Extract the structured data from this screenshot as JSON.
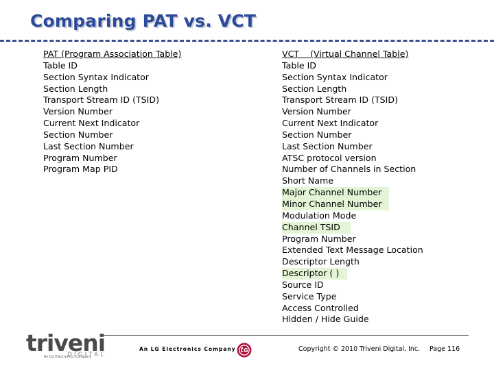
{
  "slide": {
    "title": "Comparing PAT vs. VCT"
  },
  "pat": {
    "header": "PAT (Program Association Table)",
    "items": [
      "Table ID",
      "Section Syntax Indicator",
      "Section Length",
      "Transport Stream ID (TSID)",
      "Version Number",
      "Current Next Indicator",
      "Section Number",
      "Last Section Number",
      "Program Number",
      "Program Map  PID"
    ]
  },
  "vct": {
    "header": "VCT    (Virtual Channel Table)",
    "items": [
      "Table ID",
      "Section Syntax Indicator",
      "Section Length",
      "Transport Stream ID (TSID)",
      "Version Number",
      "Current Next Indicator",
      "Section Number",
      "Last Section Number",
      "ATSC protocol version",
      "Number of Channels in Section",
      "Short Name",
      "Major Channel Number",
      "Minor Channel Number",
      "Modulation Mode",
      "Channel TSID",
      "Program Number",
      "Extended Text Message Location",
      "Descriptor Length",
      "Descriptor ( )",
      "Source ID",
      "Service Type",
      "Access Controlled",
      "Hidden / Hide Guide"
    ],
    "highlight_color": "#e3f5d6"
  },
  "footer": {
    "logo_word": "triveni",
    "logo_sub": "DIGITAL",
    "logo_tagline": "An LG Electronics Company",
    "company": "An LG Electronics Company",
    "lg_mark": "LG",
    "copyright": "Copyright © 2010 Triveni Digital, Inc.",
    "page": "Page 116"
  },
  "colors": {
    "title": "#2b4b9a",
    "title_rule": "#3b4f8f",
    "lg_red": "#b0103a"
  }
}
